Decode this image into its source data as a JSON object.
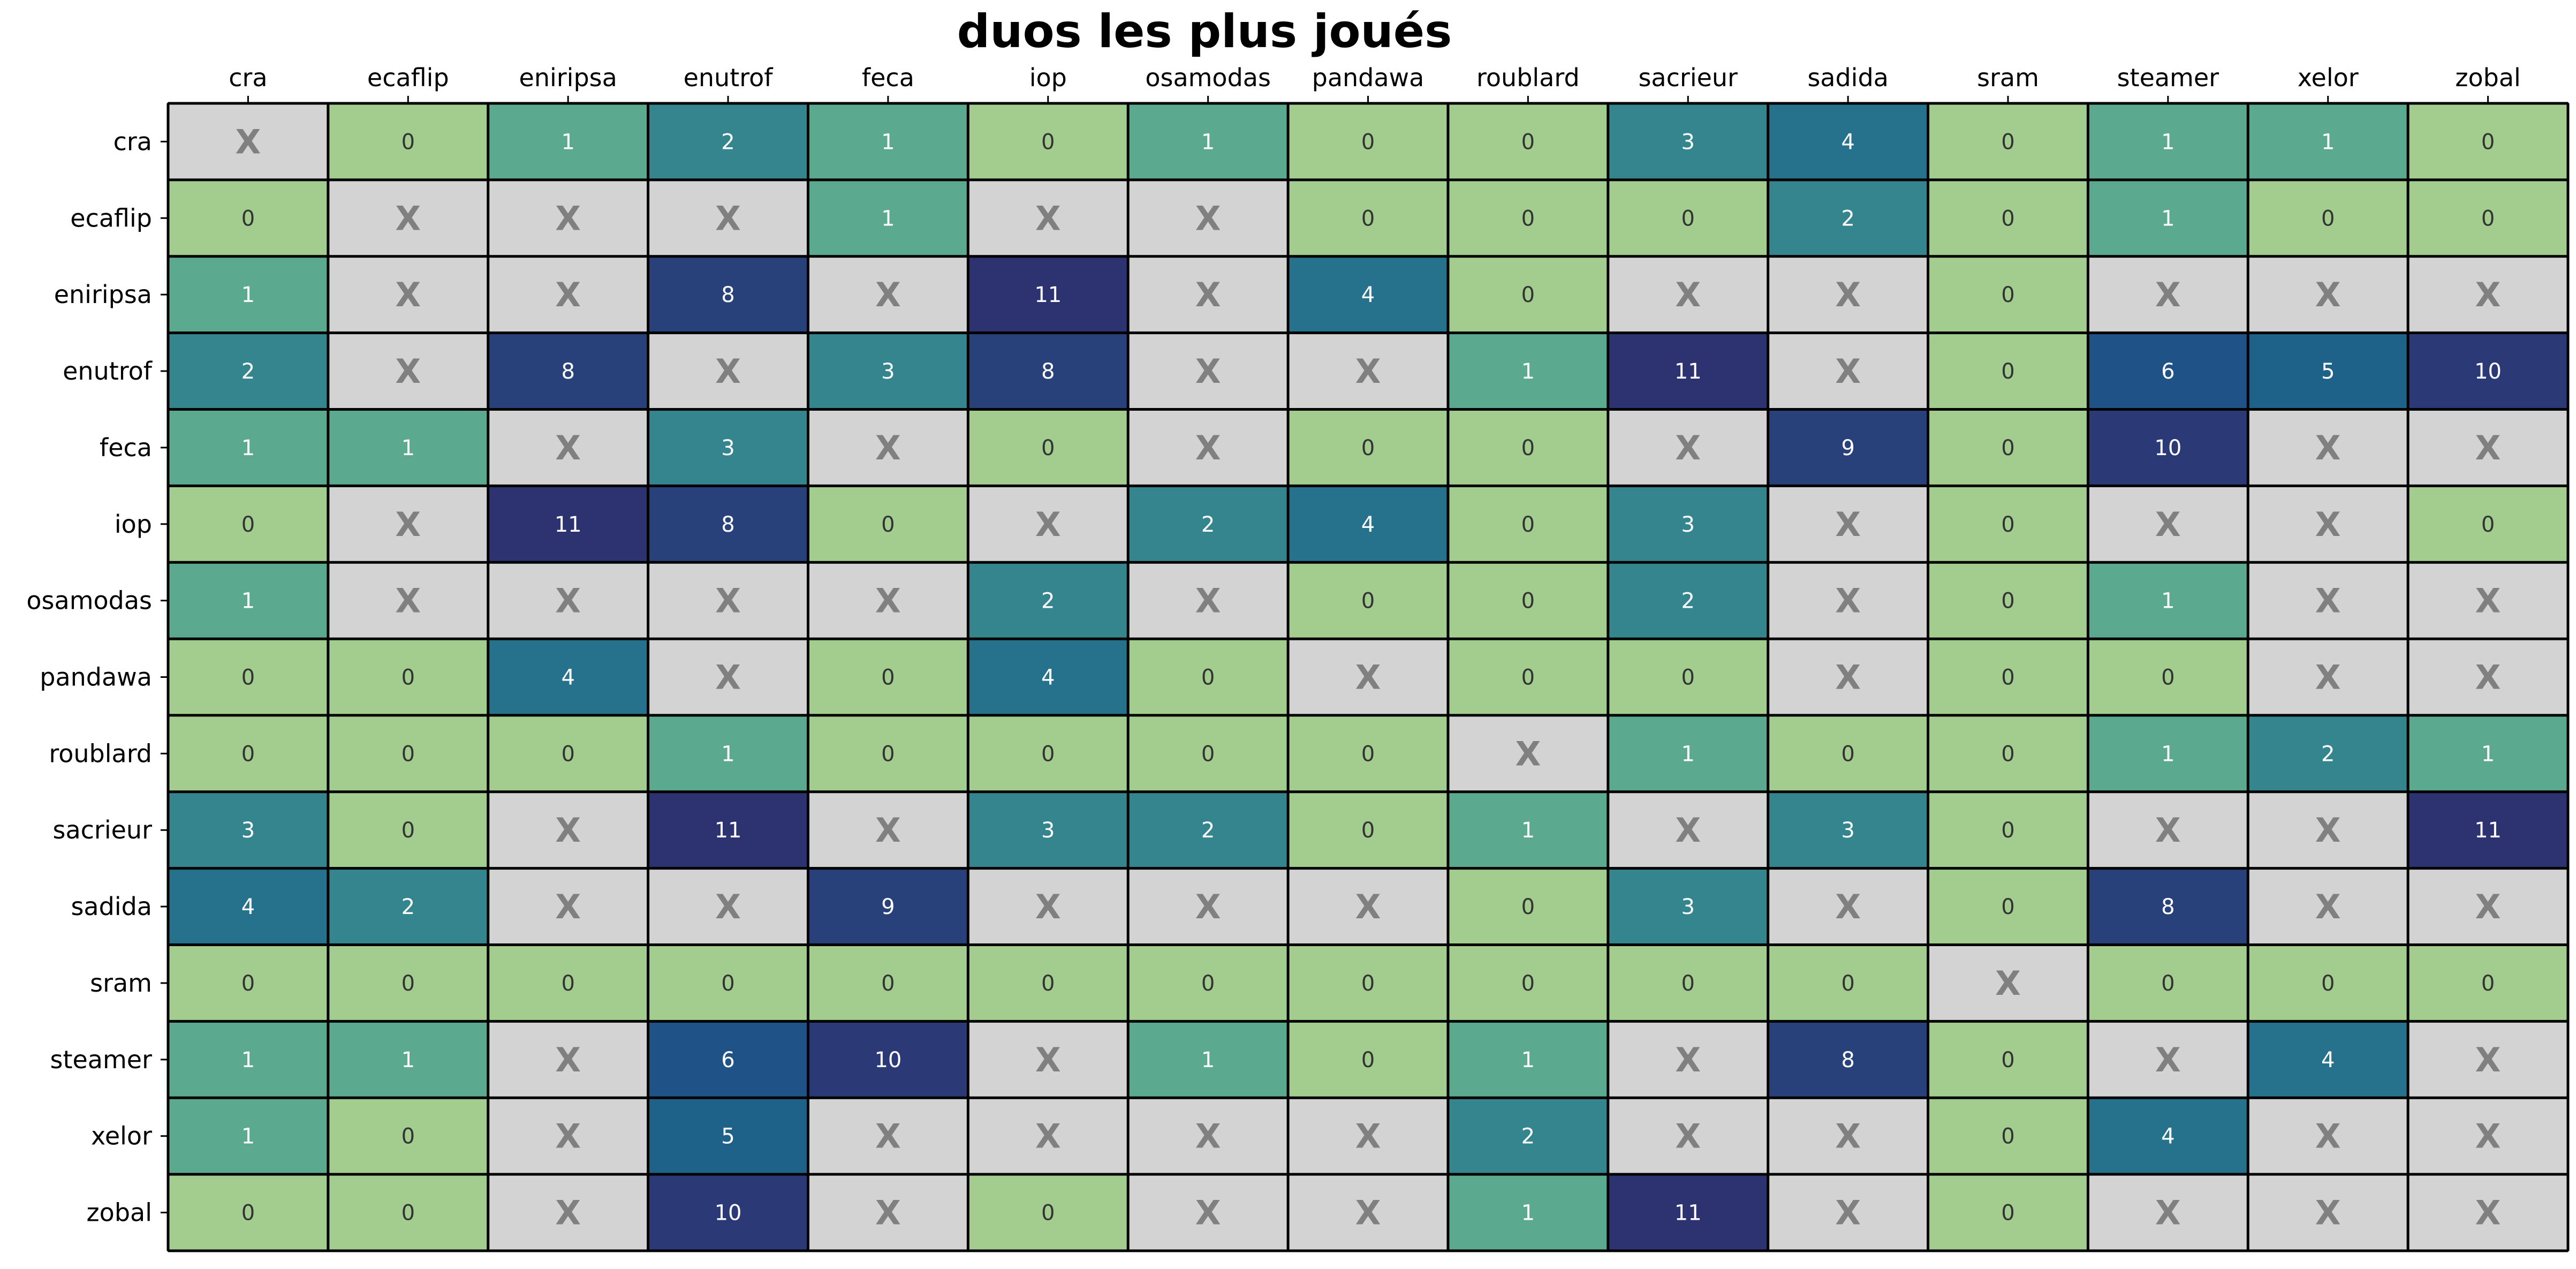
{
  "chart_data": {
    "type": "heatmap",
    "title": "duos les plus joués",
    "x_tick_labels": [
      "cra",
      "ecaflip",
      "eniripsa",
      "enutrof",
      "feca",
      "iop",
      "osamodas",
      "pandawa",
      "roublard",
      "sacrieur",
      "sadida",
      "sram",
      "steamer",
      "xelor",
      "zobal"
    ],
    "y_tick_labels": [
      "cra",
      "ecaflip",
      "eniripsa",
      "enutrof",
      "feca",
      "iop",
      "osamodas",
      "pandawa",
      "roublard",
      "sacrieur",
      "sadida",
      "sram",
      "steamer",
      "xelor",
      "zobal"
    ],
    "x_tick_position": "top",
    "colorbar": false,
    "grid": false,
    "missing_marker": "X",
    "missing_color": "#d3d3d3",
    "missing_marker_color": "#808080",
    "colormap": [
      "#a2cd8e",
      "#5ba98f",
      "#35858f",
      "#26718b",
      "#1f6289",
      "#1f5287",
      "#244a82",
      "#29417b",
      "#2b3a77",
      "#2d3270"
    ],
    "value_range": [
      0,
      11
    ],
    "rows": [
      [
        "X",
        "0",
        "1",
        "2",
        "1",
        "0",
        "1",
        "0",
        "0",
        "3",
        "4",
        "0",
        "1",
        "1",
        "0"
      ],
      [
        "0",
        "X",
        "X",
        "X",
        "1",
        "X",
        "X",
        "0",
        "0",
        "0",
        "2",
        "0",
        "1",
        "0",
        "0"
      ],
      [
        "1",
        "X",
        "X",
        "8",
        "X",
        "11",
        "X",
        "4",
        "0",
        "X",
        "X",
        "0",
        "X",
        "X",
        "X"
      ],
      [
        "2",
        "X",
        "8",
        "X",
        "3",
        "8",
        "X",
        "X",
        "1",
        "11",
        "X",
        "0",
        "6",
        "5",
        "10"
      ],
      [
        "1",
        "1",
        "X",
        "3",
        "X",
        "0",
        "X",
        "0",
        "0",
        "X",
        "9",
        "0",
        "10",
        "X",
        "X"
      ],
      [
        "0",
        "X",
        "11",
        "8",
        "0",
        "X",
        "2",
        "4",
        "0",
        "3",
        "X",
        "0",
        "X",
        "X",
        "0"
      ],
      [
        "1",
        "X",
        "X",
        "X",
        "X",
        "2",
        "X",
        "0",
        "0",
        "2",
        "X",
        "0",
        "1",
        "X",
        "X"
      ],
      [
        "0",
        "0",
        "4",
        "X",
        "0",
        "4",
        "0",
        "X",
        "0",
        "0",
        "X",
        "0",
        "0",
        "X",
        "X"
      ],
      [
        "0",
        "0",
        "0",
        "1",
        "0",
        "0",
        "0",
        "0",
        "X",
        "1",
        "0",
        "0",
        "1",
        "2",
        "1"
      ],
      [
        "3",
        "0",
        "X",
        "11",
        "X",
        "3",
        "2",
        "0",
        "1",
        "X",
        "3",
        "0",
        "X",
        "X",
        "11"
      ],
      [
        "4",
        "2",
        "X",
        "X",
        "9",
        "X",
        "X",
        "X",
        "0",
        "3",
        "X",
        "0",
        "8",
        "X",
        "X"
      ],
      [
        "0",
        "0",
        "0",
        "0",
        "0",
        "0",
        "0",
        "0",
        "0",
        "0",
        "0",
        "X",
        "0",
        "0",
        "0"
      ],
      [
        "1",
        "1",
        "X",
        "6",
        "10",
        "X",
        "1",
        "0",
        "1",
        "X",
        "8",
        "0",
        "X",
        "4",
        "X"
      ],
      [
        "1",
        "0",
        "X",
        "5",
        "X",
        "X",
        "X",
        "X",
        "2",
        "X",
        "X",
        "0",
        "4",
        "X",
        "X"
      ],
      [
        "0",
        "0",
        "X",
        "10",
        "X",
        "0",
        "X",
        "X",
        "1",
        "11",
        "X",
        "0",
        "X",
        "X",
        "X"
      ]
    ]
  }
}
